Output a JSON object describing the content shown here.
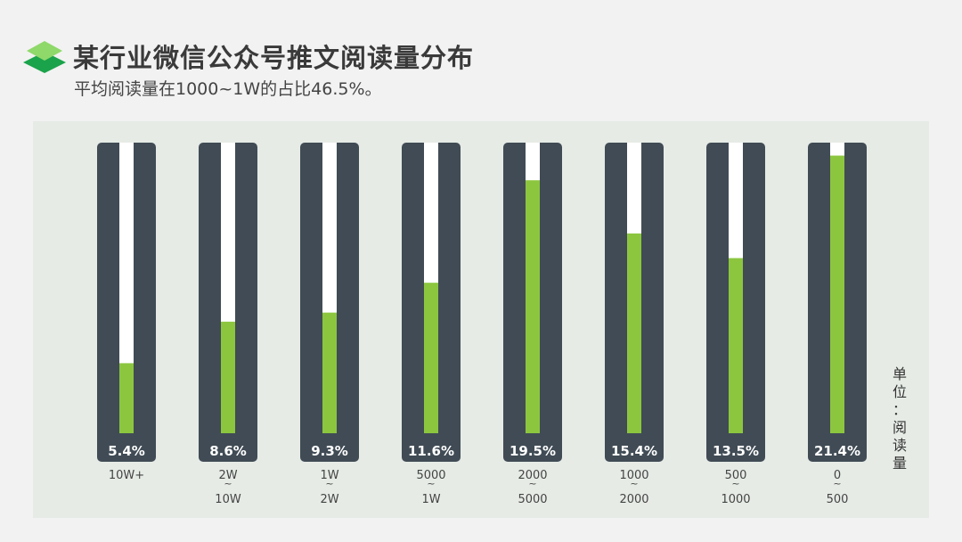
{
  "header": {
    "title": "某行业微信公众号推文阅读量分布",
    "subtitle": "平均阅读量在1000~1W的占比46.5%。"
  },
  "unit_label": "单位：阅读量",
  "colors": {
    "bar_background": "#404b55",
    "track": "#ffffff",
    "fill": "#8cc63f",
    "logo_dark": "#1aa34a",
    "logo_light": "#8fd86a",
    "panel": "#e6ebe6"
  },
  "icons": {
    "logo": "stacked-layers-icon"
  },
  "chart_data": {
    "type": "bar",
    "title": "某行业微信公众号推文阅读量分布",
    "subtitle": "平均阅读量在1000~1W的占比46.5%。",
    "ylabel": "",
    "unit": "单位：阅读量",
    "ylim": [
      0,
      22.4
    ],
    "categories": [
      [
        "10W+"
      ],
      [
        "2W",
        "~",
        "10W"
      ],
      [
        "1W",
        "~",
        "2W"
      ],
      [
        "5000",
        "~",
        "1W"
      ],
      [
        "2000",
        "~",
        "5000"
      ],
      [
        "1000",
        "~",
        "2000"
      ],
      [
        "500",
        "~",
        "1000"
      ],
      [
        "0",
        "~",
        "500"
      ]
    ],
    "values": [
      5.4,
      8.6,
      9.3,
      11.6,
      19.5,
      15.4,
      13.5,
      21.4
    ],
    "value_labels": [
      "5.4%",
      "8.6%",
      "9.3%",
      "11.6%",
      "19.5%",
      "15.4%",
      "13.5%",
      "21.4%"
    ]
  }
}
